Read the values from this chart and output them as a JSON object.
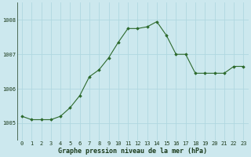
{
  "x": [
    0,
    1,
    2,
    3,
    4,
    5,
    6,
    7,
    8,
    9,
    10,
    11,
    12,
    13,
    14,
    15,
    16,
    17,
    18,
    19,
    20,
    21,
    22,
    23
  ],
  "y": [
    1005.2,
    1005.1,
    1005.1,
    1005.1,
    1005.2,
    1005.45,
    1005.8,
    1006.35,
    1006.55,
    1006.9,
    1007.35,
    1007.75,
    1007.75,
    1007.8,
    1007.95,
    1007.55,
    1007.0,
    1007.0,
    1006.45,
    1006.45,
    1006.45,
    1006.45,
    1006.65,
    1006.65
  ],
  "line_color": "#2d6a2d",
  "marker": "D",
  "marker_size": 1.8,
  "background_color": "#cce8ee",
  "grid_color": "#b0d8e0",
  "xlabel": "Graphe pression niveau de la mer (hPa)",
  "xlabel_fontsize": 6.0,
  "xlabel_color": "#1a3a1a",
  "xlabel_bold": true,
  "ylim": [
    1004.5,
    1008.5
  ],
  "yticks": [
    1005,
    1006,
    1007,
    1008
  ],
  "xticks": [
    0,
    1,
    2,
    3,
    4,
    5,
    6,
    7,
    8,
    9,
    10,
    11,
    12,
    13,
    14,
    15,
    16,
    17,
    18,
    19,
    20,
    21,
    22,
    23
  ],
  "tick_fontsize": 5.0,
  "tick_color": "#1a3a1a",
  "linewidth": 0.8
}
